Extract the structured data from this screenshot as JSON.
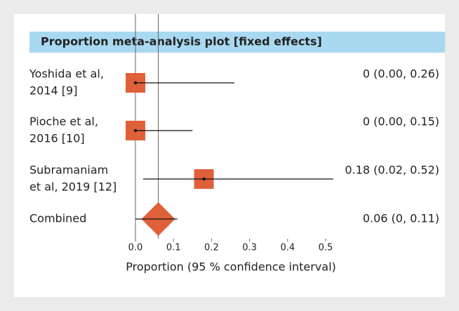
{
  "chart_data": {
    "type": "forest",
    "title": "Proportion meta-analysis plot [fixed effects]",
    "x_label": "Proportion (95 % confidence interval)",
    "labels": [
      [
        "Yoshida et al,",
        "2014 [9]"
      ],
      [
        "Pioche et al,",
        "2016 [10]"
      ],
      [
        "Subramaniam",
        "et al, 2019 [12]"
      ],
      [
        "Combined"
      ]
    ],
    "values": [
      0,
      0,
      0.18,
      0.06
    ],
    "lower": [
      0,
      0,
      0.02,
      0
    ],
    "upper": [
      0.26,
      0.15,
      0.52,
      0.11
    ],
    "value_labels": [
      "0 (0.00, 0.26)",
      "0 (0.00, 0.15)",
      "0.18 (0.02, 0.52)",
      "0.06 (0, 0.11)"
    ],
    "color": "#e0603a",
    "xlim": [
      0,
      0.5
    ],
    "xticks": [
      {
        "value": 0,
        "label": "0.0"
      },
      0.1,
      0.2,
      0.3,
      0.4,
      0.5
    ]
  }
}
